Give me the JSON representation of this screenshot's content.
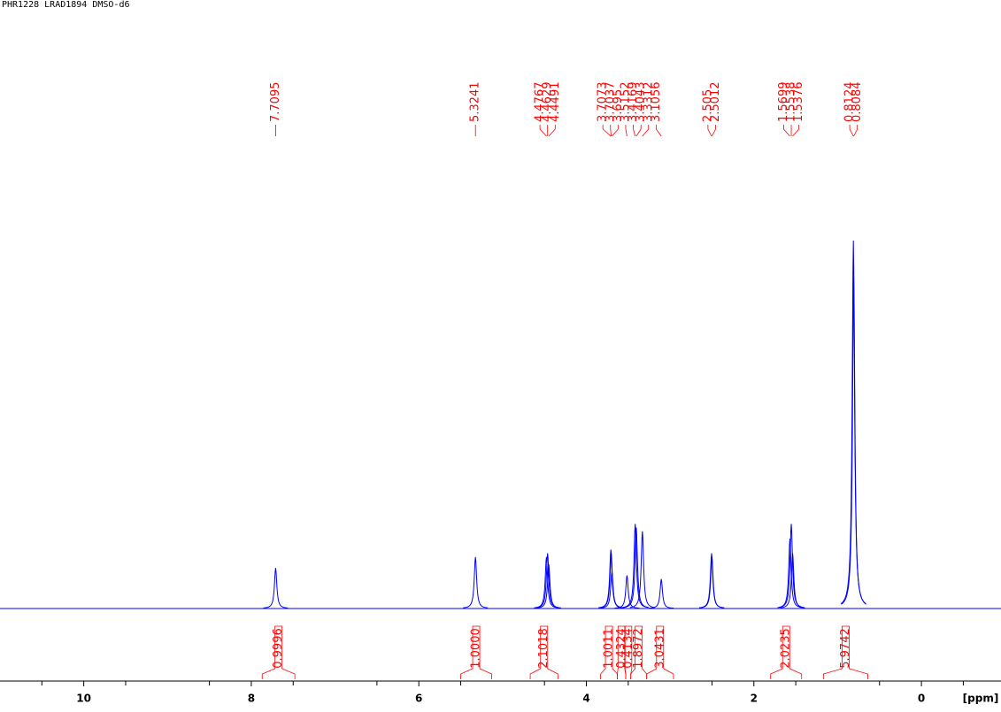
{
  "chart_data": {
    "type": "nmr",
    "title": "PHR1228 LRAD1894 DMSO-d6",
    "x_label": "[ppm]",
    "xlim": [
      11,
      -0.95
    ],
    "xticks": [
      10,
      8,
      6,
      4,
      2,
      0
    ],
    "xminorticks": [
      10.5,
      9.5,
      8.5,
      7.5,
      6.5,
      5.5,
      4.5,
      3.5,
      2.5,
      1.5,
      0.5,
      -0.5
    ],
    "ylim": [
      0,
      100
    ],
    "color": "#0000ff",
    "label_color": "#ff0000",
    "peaks": [
      {
        "ppm": 7.7095,
        "height": 11
      },
      {
        "ppm": 5.3241,
        "height": 14
      },
      {
        "ppm": 4.4767,
        "height": 14
      },
      {
        "ppm": 4.4629,
        "height": 15
      },
      {
        "ppm": 4.4491,
        "height": 12
      },
      {
        "ppm": 3.7073,
        "height": 16
      },
      {
        "ppm": 3.7037,
        "height": 15
      },
      {
        "ppm": 3.695,
        "height": 10
      },
      {
        "ppm": 3.5152,
        "height": 9
      },
      {
        "ppm": 3.4169,
        "height": 23
      },
      {
        "ppm": 3.4043,
        "height": 22
      },
      {
        "ppm": 3.3312,
        "height": 21
      },
      {
        "ppm": 3.1056,
        "height": 8
      },
      {
        "ppm": 2.505,
        "height": 15
      },
      {
        "ppm": 2.5012,
        "height": 14
      },
      {
        "ppm": 1.5699,
        "height": 19
      },
      {
        "ppm": 1.5538,
        "height": 23
      },
      {
        "ppm": 1.5376,
        "height": 15
      },
      {
        "ppm": 0.8124,
        "height": 100
      },
      {
        "ppm": 0.8084,
        "height": 90
      }
    ],
    "integrals": [
      {
        "range": [
          7.87,
          7.48
        ],
        "value": 0.9996
      },
      {
        "range": [
          5.5,
          5.13
        ],
        "value": 1.0,
        "value_label": "1.0000"
      },
      {
        "range": [
          4.67,
          4.34
        ],
        "value": 2.1018
      },
      {
        "range": [
          3.83,
          3.63
        ],
        "value": 1.0011
      },
      {
        "range": [
          3.63,
          3.53
        ],
        "value": 0.4324
      },
      {
        "range": [
          3.53,
          3.47
        ],
        "value": 0.4134
      },
      {
        "range": [
          3.47,
          3.28
        ],
        "value": 1.8972
      },
      {
        "range": [
          3.28,
          2.96
        ],
        "value": 3.0431
      },
      {
        "range": [
          1.8,
          1.43
        ],
        "value": 2.0235
      },
      {
        "range": [
          1.17,
          0.64
        ],
        "value": 5.9742
      }
    ]
  }
}
